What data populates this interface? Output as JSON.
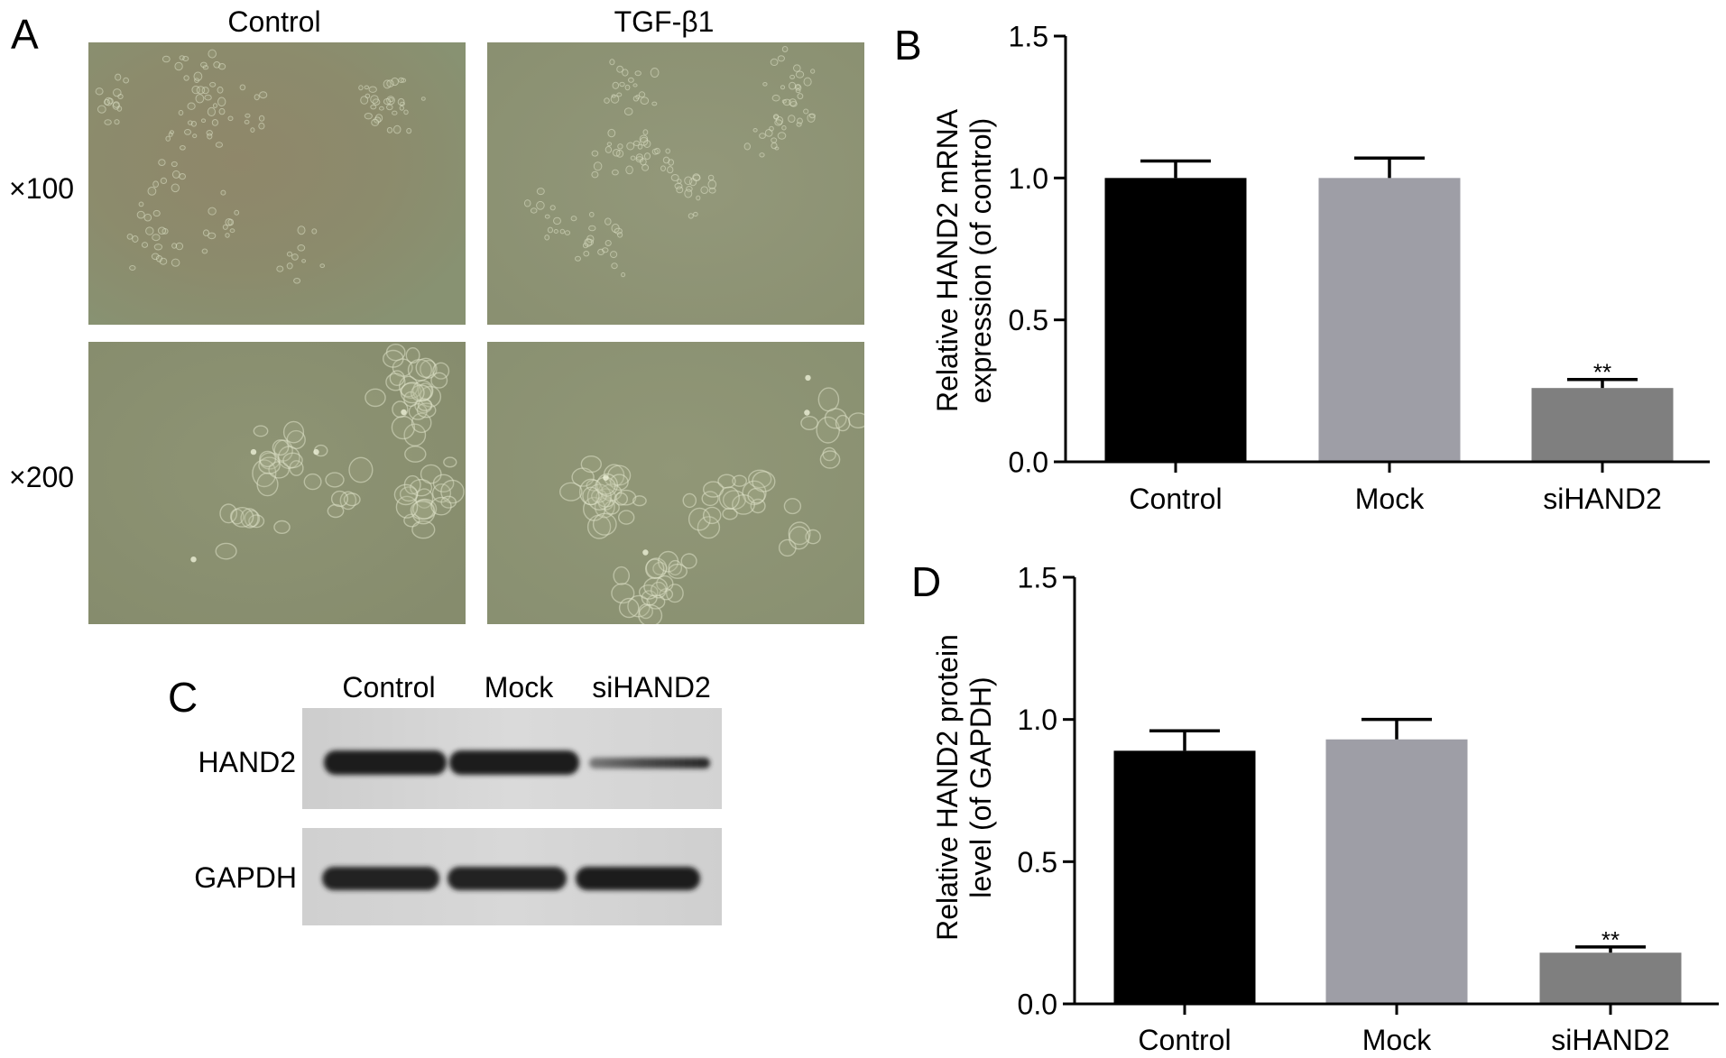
{
  "figure": {
    "panel_a": {
      "label": "A",
      "columns": [
        "Control",
        "TGF-β1"
      ],
      "rows": [
        "×100",
        "×200"
      ]
    },
    "panel_b": {
      "label": "B"
    },
    "panel_c": {
      "label": "C",
      "lanes": [
        "Control",
        "Mock",
        "siHAND2"
      ],
      "proteins": [
        "HAND2",
        "GAPDH"
      ]
    },
    "panel_d": {
      "label": "D"
    }
  },
  "chart_data": [
    {
      "type": "bar",
      "categories": [
        "Control",
        "Mock",
        "siHAND2"
      ],
      "values": [
        1.0,
        1.0,
        0.26
      ],
      "error_upper": [
        0.06,
        0.07,
        0.03
      ],
      "annotations": [
        {
          "index": 2,
          "text": "**"
        }
      ],
      "ylabel": [
        "Relative HAND2 mRNA",
        "expression (of control)"
      ],
      "ylim": [
        0,
        1.5
      ],
      "yticks": [
        0,
        0.5,
        1.0,
        1.5
      ],
      "ytick_labels": [
        "0.0",
        "0.5",
        "1.0",
        "1.5"
      ],
      "colors": [
        "#000000",
        "#9e9ea6",
        "#7f7f7f"
      ],
      "grid": false,
      "legend": "none"
    },
    {
      "type": "bar",
      "categories": [
        "Control",
        "Mock",
        "siHAND2"
      ],
      "values": [
        0.89,
        0.93,
        0.18
      ],
      "error_upper": [
        0.07,
        0.07,
        0.02
      ],
      "annotations": [
        {
          "index": 2,
          "text": "**"
        }
      ],
      "ylabel": [
        "Relative HAND2 protein",
        "level (of GAPDH)"
      ],
      "ylim": [
        0,
        1.5
      ],
      "yticks": [
        0,
        0.5,
        1.0,
        1.5
      ],
      "ytick_labels": [
        "0.0",
        "0.5",
        "1.0",
        "1.5"
      ],
      "colors": [
        "#000000",
        "#9e9ea6",
        "#7f7f7f"
      ],
      "grid": false,
      "legend": "none"
    }
  ]
}
